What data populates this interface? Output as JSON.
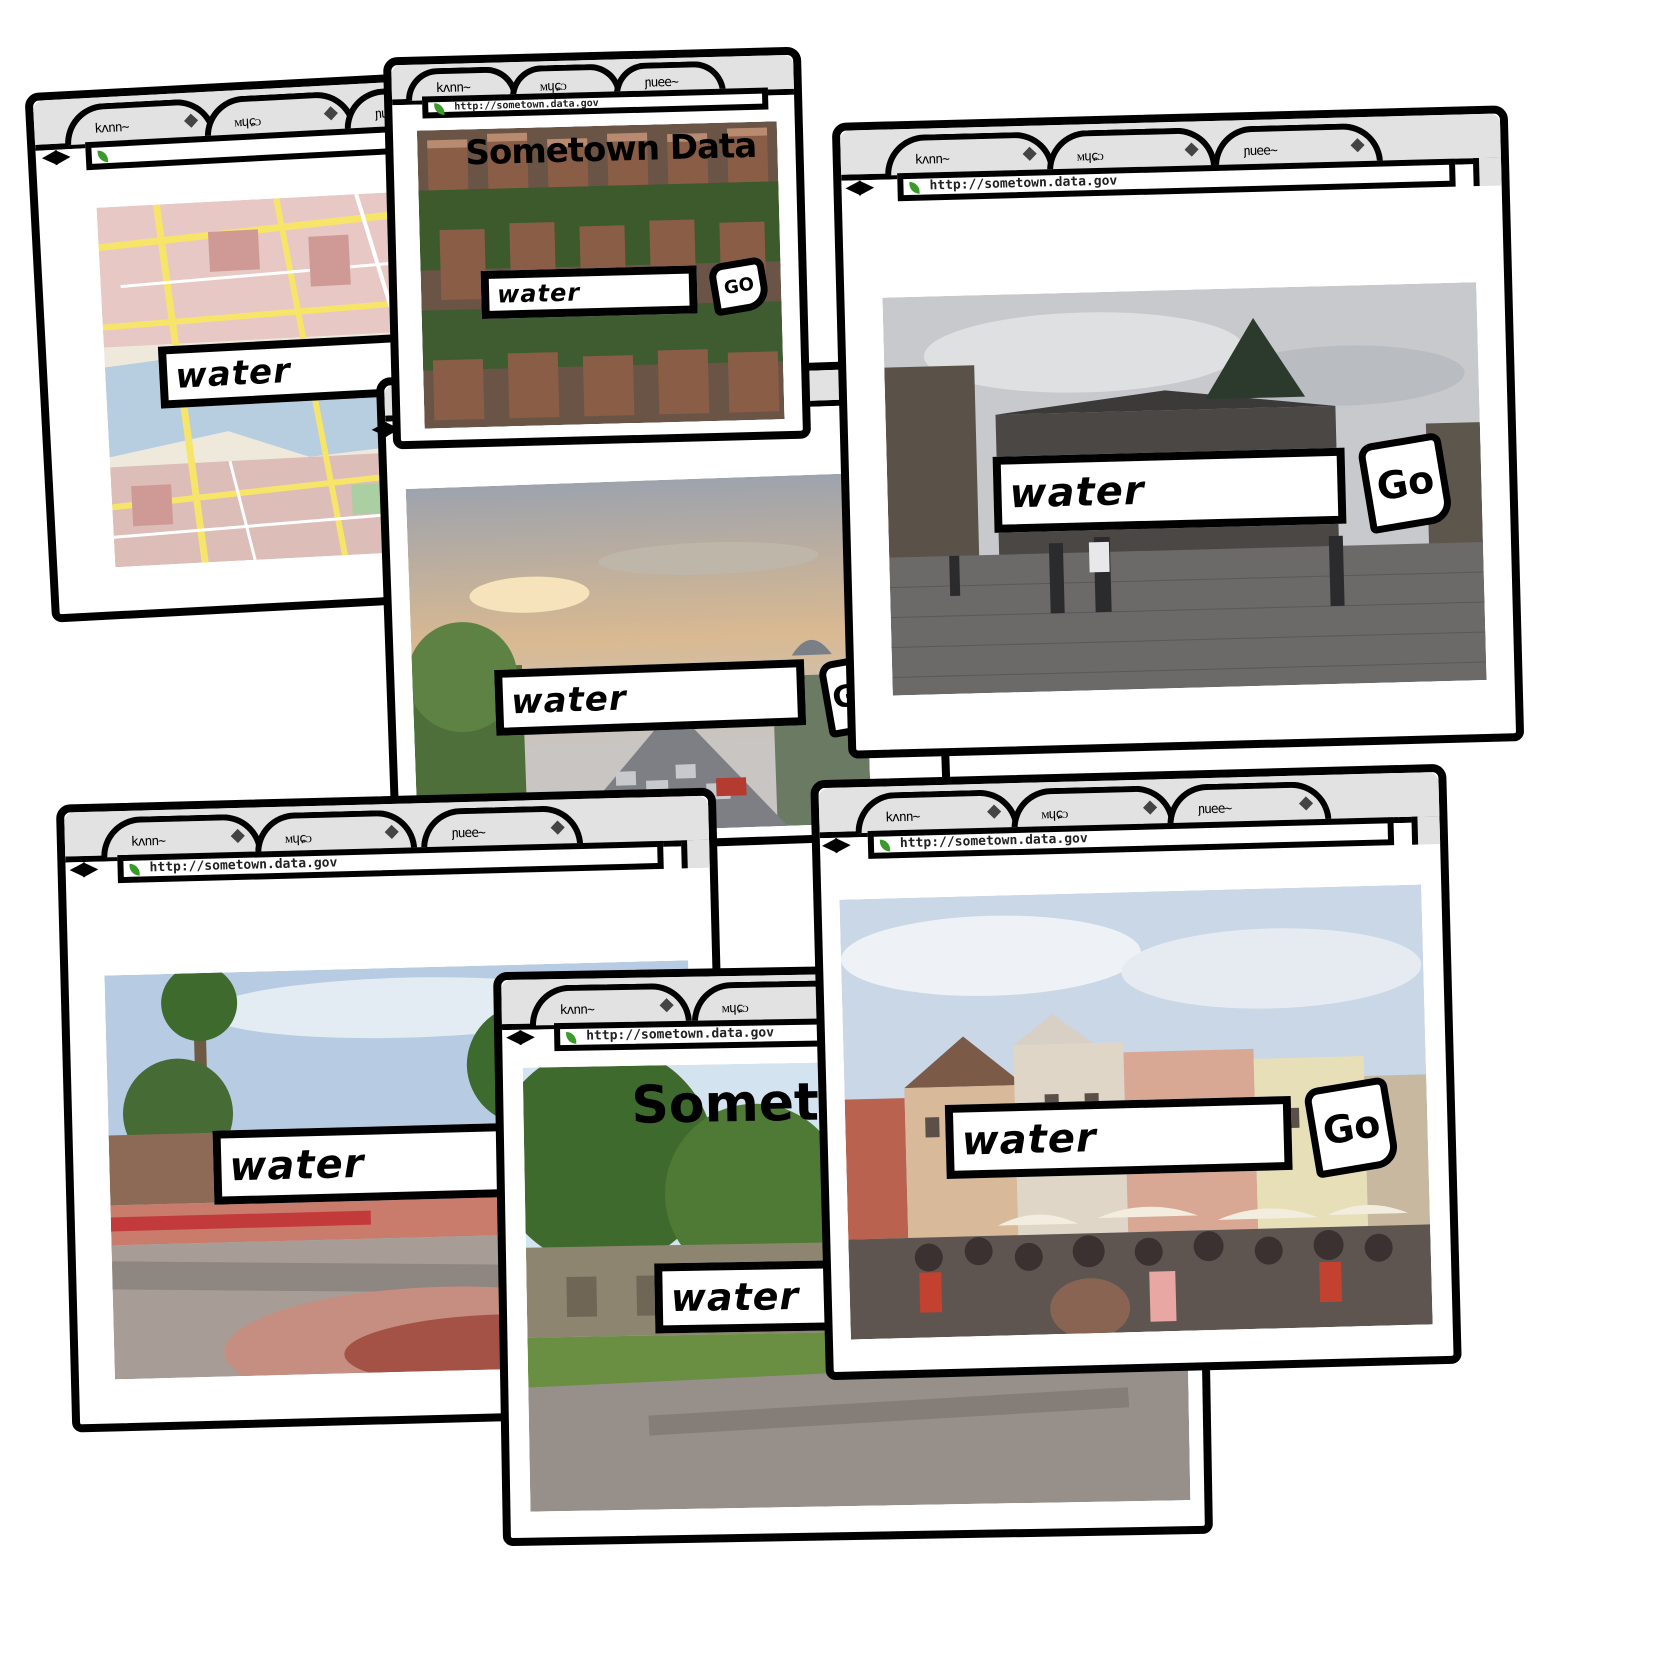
{
  "browser": {
    "url": "http://sometown.data.gov",
    "nav_glyph": "◀▶"
  },
  "site": {
    "title": "Sometown Data",
    "title_partial": "Someto"
  },
  "search": {
    "query": "water",
    "go_label": "Go",
    "go_label_caps": "GO"
  },
  "tabs": {
    "scribble_1": "kʌnn~",
    "scribble_2": "ᴍɥɕᴐ",
    "scribble_3": "ɲuee~"
  },
  "colors": {
    "frame": "#000000",
    "chrome_gray": "#e2e2e2",
    "favicon_green": "#3a9a2a"
  }
}
